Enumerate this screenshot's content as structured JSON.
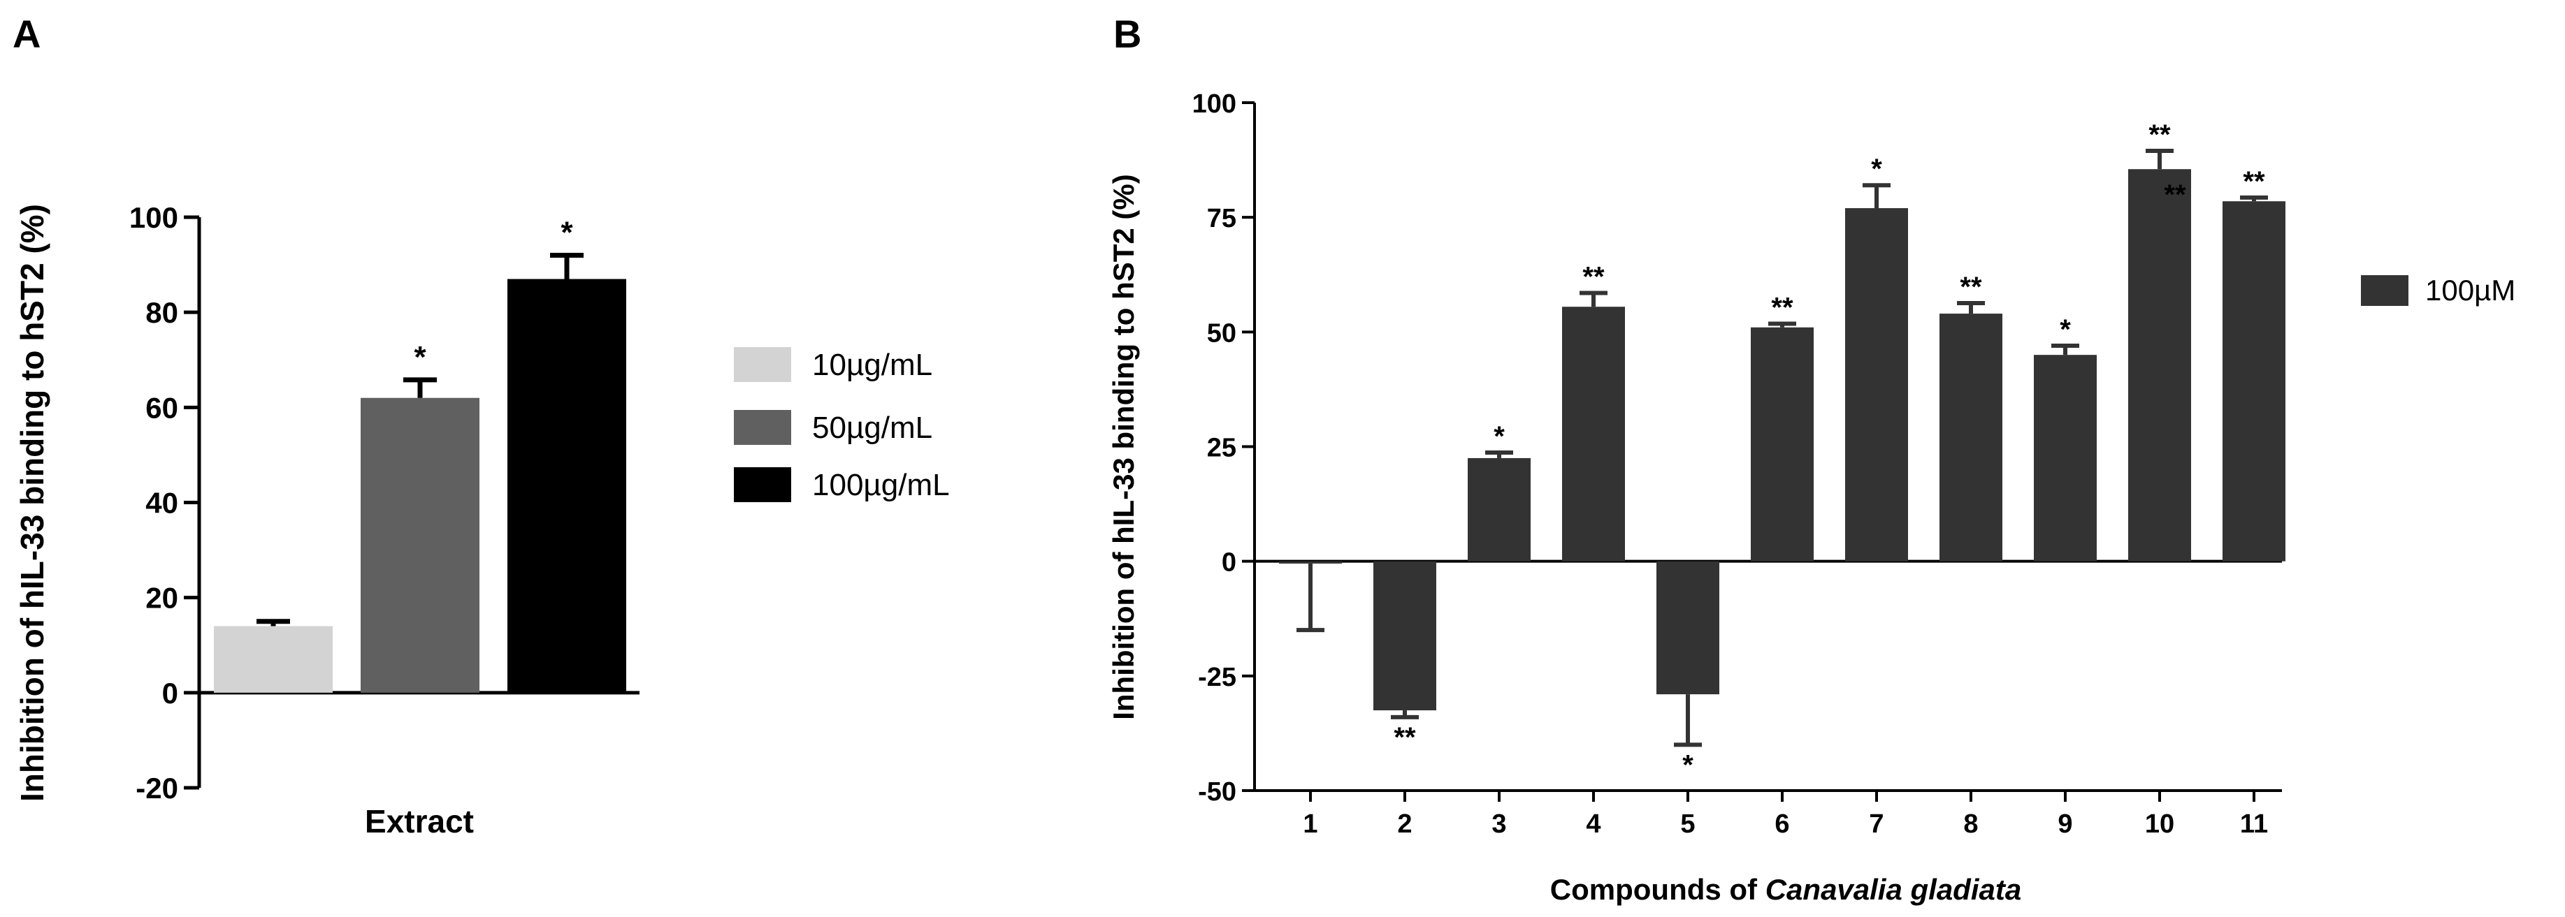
{
  "chart_data": [
    {
      "panel_label": "A",
      "type": "bar",
      "title": "",
      "xlabel": "",
      "ylabel": "Inhibition of hIL-33 binding to hST2 (%)",
      "ylim": [
        -20,
        100
      ],
      "yticks": [
        "-20",
        "0",
        "20",
        "40",
        "60",
        "80",
        "100"
      ],
      "ytick_values": [
        -20,
        0,
        20,
        40,
        60,
        80,
        100
      ],
      "categories": [
        "Extract"
      ],
      "series": [
        {
          "name": "10µg/mL",
          "color": "#d3d3d3",
          "value": 14.0,
          "error": 1.0,
          "annotation": ""
        },
        {
          "name": "50µg/mL",
          "color": "#606060",
          "value": 62.0,
          "error": 3.8,
          "annotation": "*"
        },
        {
          "name": "100µg/mL",
          "color": "#000000",
          "value": 87.0,
          "error": 5.0,
          "annotation": "*"
        }
      ],
      "legend": {
        "position": "right",
        "entries": [
          "10µg/mL",
          "50µg/mL",
          "100µg/mL"
        ]
      }
    },
    {
      "panel_label": "B",
      "type": "bar",
      "title": "",
      "xlabel_prefix": "Compounds of ",
      "xlabel_italic": "Canavalia gladiata",
      "ylabel": "Inhibition of hIL-33 binding to hST2 (%)",
      "ylim": [
        -50,
        100
      ],
      "yticks": [
        "-50",
        "-25",
        "0",
        "25",
        "50",
        "75",
        "100"
      ],
      "ytick_values": [
        -50,
        -25,
        0,
        25,
        50,
        75,
        100
      ],
      "categories": [
        "1",
        "2",
        "3",
        "4",
        "5",
        "6",
        "7",
        "8",
        "9",
        "10",
        "11"
      ],
      "series": [
        {
          "name": "100µM",
          "color": "#333333",
          "values": [
            -0.5,
            -32.5,
            22.5,
            55.5,
            -29.0,
            51.0,
            77.0,
            54.0,
            45.0,
            85.5,
            78.5
          ],
          "errors": [
            14.5,
            1.5,
            1.2,
            3.0,
            11.0,
            0.8,
            5.0,
            2.3,
            2.0,
            4.0,
            0.8
          ],
          "annotations": [
            "",
            "**",
            "*",
            "**",
            "*",
            "**",
            "*",
            "**",
            "*",
            "**",
            "**"
          ]
        }
      ],
      "extra_annotation": "**",
      "legend": {
        "position": "right",
        "entries": [
          "100µM"
        ]
      }
    }
  ]
}
